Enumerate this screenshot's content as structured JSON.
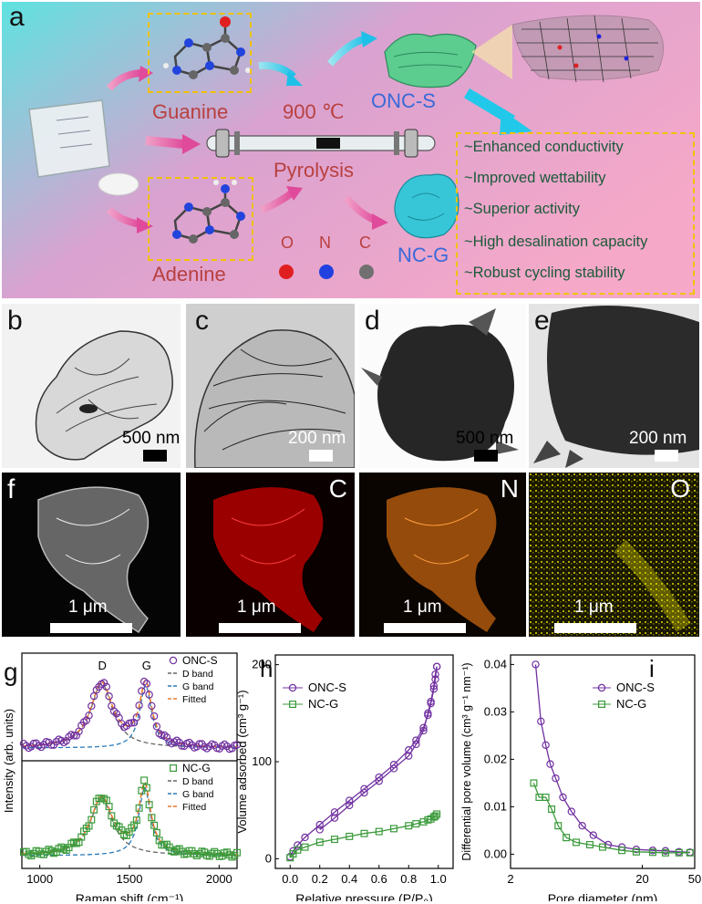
{
  "panel_a": {
    "letter": "a",
    "guanine": "Guanine",
    "adenine": "Adenine",
    "temperature": "900 ℃",
    "pyrolysis": "Pyrolysis",
    "product_s": "ONC-S",
    "product_g": "NC-G",
    "elements": [
      {
        "symbol": "O",
        "color": "#e02020"
      },
      {
        "symbol": "N",
        "color": "#2040e0"
      },
      {
        "symbol": "C",
        "color": "#707070"
      }
    ],
    "features": [
      "~Enhanced conductivity",
      "~Improved wettability",
      "~Superior activity",
      "~High desalination capacity",
      "~Robust cycling stability"
    ]
  },
  "micrographs": {
    "b": {
      "letter": "b",
      "scale": "500 nm"
    },
    "c": {
      "letter": "c",
      "scale": "200 nm"
    },
    "d": {
      "letter": "d",
      "scale": "500 nm"
    },
    "e": {
      "letter": "e",
      "scale": "200 nm"
    }
  },
  "maps": {
    "f": {
      "letter": "f",
      "scale": "1 μm"
    },
    "c": {
      "label": "C",
      "scale": "1 μm"
    },
    "n": {
      "label": "N",
      "scale": "1 μm"
    },
    "o": {
      "label": "O",
      "scale": "1 μm"
    }
  },
  "colors": {
    "onc_s": "#7030a0",
    "nc_g": "#3a9a3a",
    "d_band": "#666666",
    "g_band": "#2a7ab8",
    "fitted": "#e87a2a"
  },
  "chart_data": [
    {
      "panel": "g",
      "type": "line",
      "xlabel": "Raman shift (cm⁻¹)",
      "ylabel": "Intensity (arb. units)",
      "xlim": [
        900,
        2100
      ],
      "xticks": [
        1000,
        1500,
        2000
      ],
      "peak_labels": [
        "D",
        "G"
      ],
      "subplots": [
        {
          "legend": [
            "ONC-S",
            "D band",
            "G band",
            "Fitted"
          ],
          "D_peak": 1345,
          "G_peak": 1590,
          "D_intensity": 0.8,
          "G_intensity": 0.78
        },
        {
          "legend": [
            "NC-G",
            "D band",
            "G band",
            "Fitted"
          ],
          "D_peak": 1345,
          "G_peak": 1585,
          "D_intensity": 0.72,
          "G_intensity": 0.85
        }
      ]
    },
    {
      "panel": "h",
      "type": "line",
      "xlabel": "Relative pressure (P/P₀)",
      "ylabel": "Volume adsorbed (cm³ g⁻¹)",
      "xlim": [
        -0.1,
        1.1
      ],
      "ylim": [
        -10,
        210
      ],
      "xticks": [
        "0.0",
        "0.2",
        "0.4",
        "0.6",
        "0.8",
        "1.0"
      ],
      "yticks": [
        0,
        100,
        200
      ],
      "series": [
        {
          "name": "ONC-S",
          "x": [
            0.0,
            0.02,
            0.05,
            0.1,
            0.2,
            0.3,
            0.4,
            0.5,
            0.6,
            0.7,
            0.8,
            0.85,
            0.9,
            0.93,
            0.95,
            0.97,
            0.98,
            0.99
          ],
          "adsorption": [
            2,
            8,
            14,
            22,
            35,
            48,
            60,
            72,
            84,
            97,
            112,
            122,
            135,
            148,
            160,
            175,
            185,
            198
          ],
          "desorption": [
            198,
            190,
            178,
            162,
            150,
            132,
            118,
            106,
            93,
            80,
            68,
            55,
            42,
            30
          ]
        },
        {
          "name": "NC-G",
          "x": [
            0.0,
            0.02,
            0.05,
            0.1,
            0.2,
            0.3,
            0.4,
            0.5,
            0.6,
            0.7,
            0.8,
            0.85,
            0.9,
            0.93,
            0.95,
            0.97,
            0.98,
            0.99
          ],
          "adsorption": [
            1,
            5,
            9,
            12,
            17,
            20,
            23,
            26,
            28,
            31,
            34,
            36,
            38,
            40,
            41,
            43,
            44,
            46
          ]
        }
      ]
    },
    {
      "panel": "i",
      "type": "line",
      "xlabel": "Pore diameter (nm)",
      "ylabel": "Differential pore volume (cm³ g⁻¹ nm⁻¹)",
      "xscale": "log",
      "xlim": [
        2,
        50
      ],
      "xticks": [
        2,
        20,
        50
      ],
      "ylim": [
        -0.003,
        0.042
      ],
      "yticks": [
        "0.00",
        "0.01",
        "0.02",
        "0.03",
        "0.04"
      ],
      "series": [
        {
          "name": "ONC-S",
          "x": [
            3.1,
            3.4,
            3.7,
            4.0,
            4.4,
            5.0,
            5.8,
            7.0,
            8.5,
            11,
            14,
            18,
            24,
            30,
            38,
            46
          ],
          "y": [
            0.04,
            0.028,
            0.023,
            0.019,
            0.016,
            0.012,
            0.009,
            0.006,
            0.004,
            0.002,
            0.0015,
            0.001,
            0.0008,
            0.0007,
            0.0005,
            0.0004
          ]
        },
        {
          "name": "NC-G",
          "x": [
            3.0,
            3.3,
            3.7,
            4.1,
            4.6,
            5.3,
            6.3,
            8.0,
            10,
            14,
            18,
            24,
            30,
            38,
            46
          ],
          "y": [
            0.015,
            0.012,
            0.012,
            0.0095,
            0.006,
            0.0035,
            0.0025,
            0.002,
            0.0015,
            0.0008,
            0.0005,
            0.0004,
            0.0003,
            0.0003,
            0.0003
          ]
        }
      ]
    }
  ]
}
